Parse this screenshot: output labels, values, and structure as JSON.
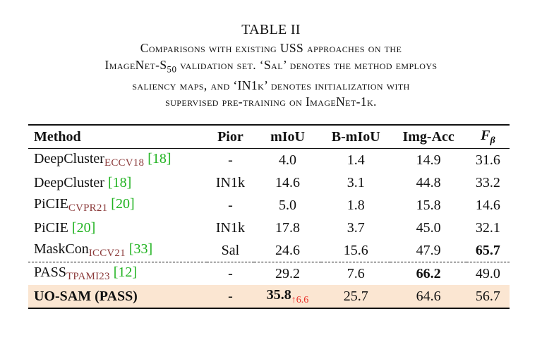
{
  "table_label": "TABLE II",
  "caption": {
    "line1": "Comparisons with existing USS approaches on the",
    "line2_prefix": "ImageNet-S",
    "line2_sub": "50",
    "line2_suffix": " validation set. ‘Sal’ denotes the method employs",
    "line3": "saliency maps, and ‘IN1k’ denotes initialization with",
    "line4": "supervised pre-training on ImageNet-1k."
  },
  "columns": {
    "method": "Method",
    "pior": "Pior",
    "miou": "mIoU",
    "bmiou": "B-mIoU",
    "img_acc": "Img-Acc",
    "f_main": "F",
    "f_sub": "β"
  },
  "rows": [
    {
      "name": "DeepCluster",
      "venue": "ECCV18",
      "ref": "[18]",
      "pior": "-",
      "miou": "4.0",
      "bmiou": "1.4",
      "img_acc": "14.9",
      "f": "31.6"
    },
    {
      "name": "DeepCluster",
      "venue": "",
      "ref": "[18]",
      "pior": "IN1k",
      "miou": "14.6",
      "bmiou": "3.1",
      "img_acc": "44.8",
      "f": "33.2"
    },
    {
      "name": "PiCIE",
      "venue": "CVPR21",
      "ref": "[20]",
      "pior": "-",
      "miou": "5.0",
      "bmiou": "1.8",
      "img_acc": "15.8",
      "f": "14.6"
    },
    {
      "name": "PiCIE",
      "venue": "",
      "ref": "[20]",
      "pior": "IN1k",
      "miou": "17.8",
      "bmiou": "3.7",
      "img_acc": "45.0",
      "f": "32.1"
    },
    {
      "name": "MaskCon",
      "venue": "ICCV21",
      "ref": "[33]",
      "pior": "Sal",
      "miou": "24.6",
      "bmiou": "15.6",
      "img_acc": "47.9",
      "f": "65.7"
    },
    {
      "name": "PASS",
      "venue": "TPAMI23",
      "ref": "[12]",
      "pior": "-",
      "miou": "29.2",
      "bmiou": "7.6",
      "img_acc": "66.2",
      "f": "49.0"
    },
    {
      "name": "UO-SAM (PASS)",
      "venue": "",
      "ref": "",
      "pior": "-",
      "miou": "35.8",
      "miou_delta": "↑6.6",
      "bmiou": "25.7",
      "img_acc": "64.6",
      "f": "56.7"
    }
  ],
  "colors": {
    "ref": "#21b321",
    "venue": "#8b3a3a",
    "delta": "#e8312a",
    "highlight_bg": "#fbe6d2"
  }
}
